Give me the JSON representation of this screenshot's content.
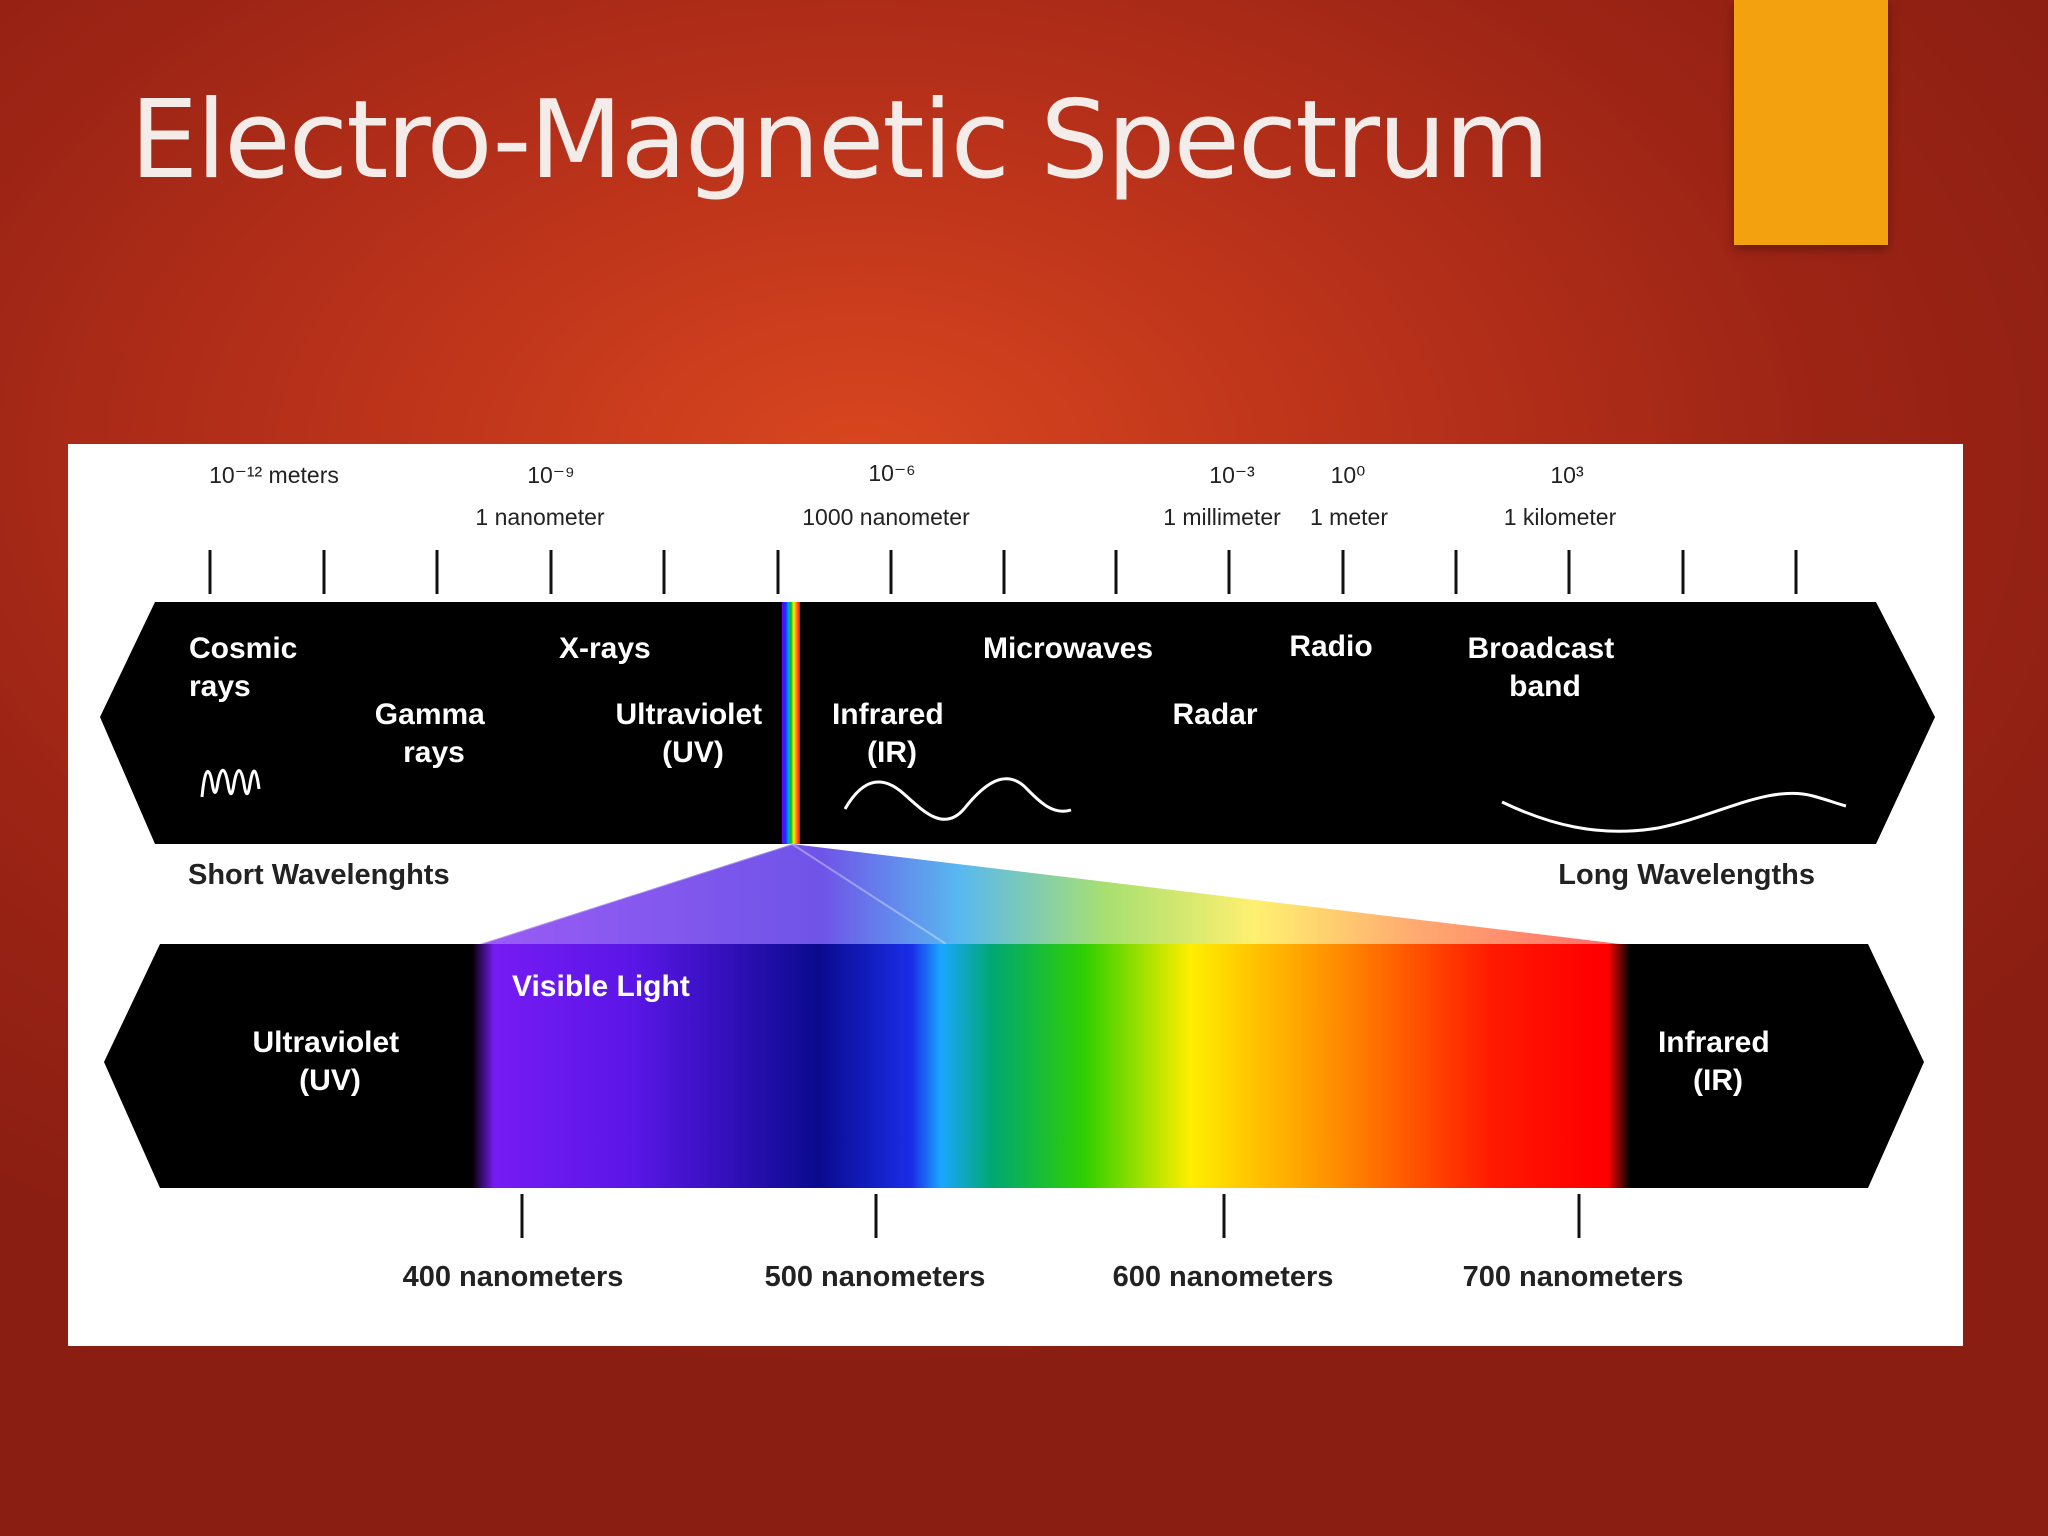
{
  "slide": {
    "title": "Electro-Magnetic Spectrum",
    "accent_color": "#f3a10f",
    "background_color": "#b8311a"
  },
  "figure": {
    "scale_top": [
      {
        "value": "10⁻¹² meters",
        "desc": ""
      },
      {
        "value": "10⁻⁹",
        "desc": "1 nanometer"
      },
      {
        "value": "10⁻⁶",
        "desc": "1000 nanometer"
      },
      {
        "value": "10⁻³",
        "desc": "1 millimeter"
      },
      {
        "value": "10⁰",
        "desc": "1 meter"
      },
      {
        "value": "10³",
        "desc": "1 kilometer"
      }
    ],
    "bands": {
      "cosmic": [
        "Cosmic",
        "rays"
      ],
      "gamma": [
        "Gamma",
        "rays"
      ],
      "xrays": "X-rays",
      "uv": [
        "Ultraviolet",
        "(UV)"
      ],
      "ir": [
        "Infrared",
        "(IR)"
      ],
      "microwaves": "Microwaves",
      "radar": "Radar",
      "radio": "Radio",
      "broadcast": [
        "Broadcast",
        "band"
      ]
    },
    "short_wavelengths": "Short Wavelenghts",
    "long_wavelengths": "Long Wavelengths",
    "visible": {
      "title": "Visible Light",
      "uv": [
        "Ultraviolet",
        "(UV)"
      ],
      "ir": [
        "Infrared",
        "(IR)"
      ]
    },
    "scale_bottom": [
      "400 nanometers",
      "500 nanometers",
      "600 nanometers",
      "700 nanometers"
    ],
    "colors": {
      "band": "#000000",
      "panel": "#ffffff"
    }
  }
}
